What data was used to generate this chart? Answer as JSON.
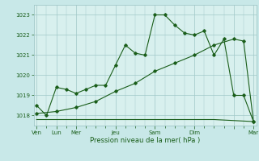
{
  "background_color": "#c8e8e8",
  "plot_bg_color": "#d8f0ee",
  "grid_color": "#a0c8c8",
  "line_color": "#1a5e1a",
  "title": "Pression niveau de la mer( hPa )",
  "ylim": [
    1017.5,
    1023.5
  ],
  "yticks": [
    1018,
    1019,
    1020,
    1021,
    1022,
    1023
  ],
  "xlim": [
    -0.3,
    22.3
  ],
  "series1_x": [
    0,
    1,
    2,
    3,
    4,
    5,
    6,
    7,
    8,
    9,
    10,
    11,
    12,
    13,
    14,
    15,
    16,
    17,
    18,
    19,
    20,
    21,
    22
  ],
  "series1_y": [
    1018.5,
    1018.0,
    1019.4,
    1019.3,
    1019.1,
    1019.3,
    1019.5,
    1019.5,
    1020.5,
    1021.5,
    1021.1,
    1021.0,
    1023.0,
    1023.0,
    1022.5,
    1022.1,
    1022.0,
    1022.2,
    1021.0,
    1021.8,
    1019.0,
    1019.0,
    1017.7
  ],
  "series2_x": [
    0,
    1,
    2,
    3,
    4,
    5,
    6,
    7,
    8,
    9,
    10,
    11,
    12,
    13,
    14,
    15,
    16,
    17,
    18,
    22
  ],
  "series2_y": [
    1017.8,
    1017.8,
    1017.8,
    1017.8,
    1017.8,
    1017.8,
    1017.8,
    1017.8,
    1017.8,
    1017.8,
    1017.8,
    1017.8,
    1017.8,
    1017.8,
    1017.8,
    1017.8,
    1017.8,
    1017.8,
    1017.8,
    1017.7
  ],
  "series3_x": [
    0,
    2,
    4,
    6,
    8,
    10,
    12,
    14,
    16,
    18,
    20,
    21,
    22
  ],
  "series3_y": [
    1018.1,
    1018.2,
    1018.4,
    1018.7,
    1019.2,
    1019.6,
    1020.2,
    1020.6,
    1021.0,
    1021.5,
    1021.8,
    1021.7,
    1017.7
  ],
  "day_tick_positions": [
    0,
    2,
    4,
    8,
    12,
    16,
    20,
    22
  ],
  "day_tick_labels": [
    "Ven",
    "Lun",
    "Mer",
    "Jeu",
    "Sam",
    "Dim",
    "",
    "Mar"
  ],
  "minor_xtick_positions": [
    0,
    1,
    2,
    3,
    4,
    5,
    6,
    7,
    8,
    9,
    10,
    11,
    12,
    13,
    14,
    15,
    16,
    17,
    18,
    19,
    20,
    21,
    22
  ]
}
